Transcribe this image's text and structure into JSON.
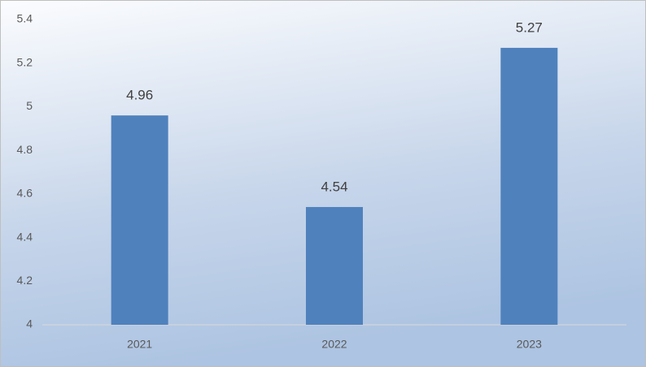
{
  "chart_data": {
    "type": "bar",
    "categories": [
      "2021",
      "2022",
      "2023"
    ],
    "values": [
      4.96,
      4.54,
      5.27
    ],
    "color": "#4f81bd",
    "ylim": [
      4,
      5.4
    ],
    "yticks": [
      4,
      4.2,
      4.4,
      4.6,
      4.8,
      5,
      5.2,
      5.4
    ],
    "grid": false,
    "data_labels": true
  }
}
